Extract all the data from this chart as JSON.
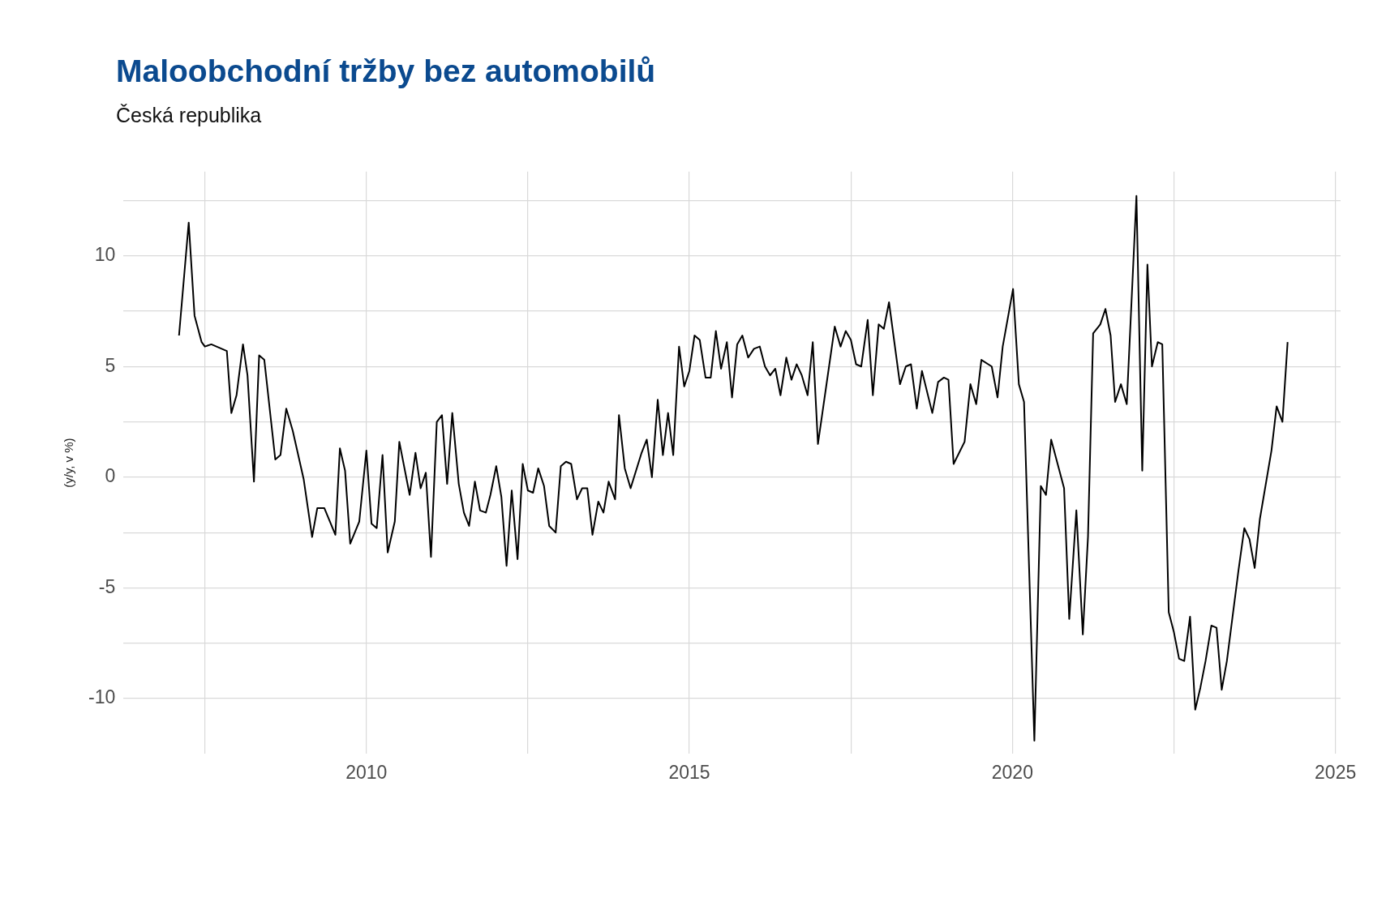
{
  "chart_data": {
    "type": "line",
    "title": "Maloobchodní tržby bez automobilů",
    "subtitle": "Česká republika",
    "ylabel": "(y/y, v %)",
    "x": [
      2007.1,
      2007.25,
      2007.34,
      2007.45,
      2007.5,
      2007.6,
      2007.84,
      2007.91,
      2007.99,
      2008.09,
      2008.16,
      2008.26,
      2008.34,
      2008.42,
      2008.59,
      2008.67,
      2008.76,
      2008.86,
      2009.03,
      2009.16,
      2009.24,
      2009.35,
      2009.52,
      2009.59,
      2009.67,
      2009.75,
      2009.89,
      2010.0,
      2010.08,
      2010.16,
      2010.25,
      2010.33,
      2010.44,
      2010.51,
      2010.67,
      2010.76,
      2010.84,
      2010.92,
      2011.0,
      2011.09,
      2011.17,
      2011.25,
      2011.33,
      2011.43,
      2011.51,
      2011.59,
      2011.68,
      2011.76,
      2011.85,
      2011.92,
      2012.01,
      2012.09,
      2012.17,
      2012.25,
      2012.34,
      2012.42,
      2012.5,
      2012.58,
      2012.66,
      2012.75,
      2012.83,
      2012.93,
      2013.01,
      2013.09,
      2013.17,
      2013.26,
      2013.34,
      2013.42,
      2013.5,
      2013.59,
      2013.67,
      2013.75,
      2013.85,
      2013.91,
      2014.0,
      2014.09,
      2014.26,
      2014.34,
      2014.42,
      2014.51,
      2014.59,
      2014.67,
      2014.75,
      2014.84,
      2014.92,
      2015.0,
      2015.08,
      2015.16,
      2015.25,
      2015.33,
      2015.41,
      2015.49,
      2015.58,
      2015.66,
      2015.74,
      2015.82,
      2015.91,
      2016.0,
      2016.09,
      2016.17,
      2016.25,
      2016.33,
      2016.41,
      2016.5,
      2016.58,
      2016.66,
      2016.74,
      2016.83,
      2016.91,
      2016.99,
      2017.25,
      2017.34,
      2017.42,
      2017.5,
      2017.58,
      2017.66,
      2017.76,
      2017.84,
      2017.93,
      2018.01,
      2018.09,
      2018.26,
      2018.35,
      2018.43,
      2018.52,
      2018.6,
      2018.76,
      2018.85,
      2018.94,
      2019.01,
      2019.09,
      2019.26,
      2019.35,
      2019.44,
      2019.52,
      2019.68,
      2019.77,
      2019.85,
      2020.01,
      2020.1,
      2020.18,
      2020.34,
      2020.44,
      2020.52,
      2020.6,
      2020.8,
      2020.88,
      2020.99,
      2021.09,
      2021.17,
      2021.25,
      2021.36,
      2021.44,
      2021.52,
      2021.59,
      2021.68,
      2021.77,
      2021.92,
      2022.01,
      2022.09,
      2022.16,
      2022.25,
      2022.32,
      2022.42,
      2022.5,
      2022.58,
      2022.66,
      2022.75,
      2022.83,
      2022.91,
      2022.99,
      2023.08,
      2023.16,
      2023.24,
      2023.32,
      2023.5,
      2023.59,
      2023.67,
      2023.75,
      2023.83,
      2024.01,
      2024.09,
      2024.18,
      2024.26
    ],
    "series": [
      {
        "color": "#000000",
        "values": [
          6.4,
          11.5,
          7.3,
          6.1,
          5.9,
          6.0,
          5.7,
          2.9,
          3.7,
          6.0,
          4.6,
          -0.2,
          5.5,
          5.3,
          0.8,
          1.0,
          3.1,
          2.1,
          -0.1,
          -2.7,
          -1.4,
          -1.4,
          -2.6,
          1.3,
          0.3,
          -3.0,
          -2.0,
          1.2,
          -2.1,
          -2.3,
          1.0,
          -3.4,
          -2.0,
          1.6,
          -0.8,
          1.1,
          -0.5,
          0.2,
          -3.6,
          2.5,
          2.8,
          -0.3,
          2.9,
          -0.3,
          -1.6,
          -2.2,
          -0.2,
          -1.5,
          -1.6,
          -0.8,
          0.5,
          -0.9,
          -4.0,
          -0.6,
          -3.7,
          0.6,
          -0.6,
          -0.7,
          0.4,
          -0.4,
          -2.2,
          -2.5,
          0.5,
          0.7,
          0.6,
          -1.0,
          -0.5,
          -0.5,
          -2.6,
          -1.1,
          -1.6,
          -0.2,
          -1.0,
          2.8,
          0.4,
          -0.5,
          1.1,
          1.7,
          0,
          3.5,
          1.0,
          2.9,
          1.0,
          5.9,
          4.1,
          4.8,
          6.4,
          6.2,
          4.5,
          4.5,
          6.6,
          4.9,
          6.1,
          3.6,
          6.0,
          6.4,
          5.4,
          5.8,
          5.9,
          5.0,
          4.6,
          4.9,
          3.7,
          5.4,
          4.4,
          5.1,
          4.6,
          3.7,
          6.1,
          1.5,
          6.8,
          5.9,
          6.6,
          6.2,
          5.1,
          5.0,
          7.1,
          3.7,
          6.9,
          6.7,
          7.9,
          4.2,
          5.0,
          5.1,
          3.1,
          4.8,
          2.9,
          4.3,
          4.5,
          4.4,
          0.6,
          1.6,
          4.2,
          3.3,
          5.3,
          5.0,
          3.6,
          5.9,
          8.5,
          4.2,
          3.4,
          -11.9,
          -0.4,
          -0.8,
          1.7,
          -0.5,
          -6.4,
          -1.5,
          -7.1,
          -2.7,
          6.5,
          6.9,
          7.6,
          6.4,
          3.4,
          4.2,
          3.3,
          12.7,
          0.3,
          9.6,
          5.0,
          6.1,
          6.0,
          -6.1,
          -7.0,
          -8.2,
          -8.3,
          -6.3,
          -10.5,
          -9.5,
          -8.3,
          -6.7,
          -6.8,
          -9.6,
          -8.3,
          -4.2,
          -2.3,
          -2.8,
          -4.1,
          -1.9,
          1.2,
          3.2,
          2.5,
          6.1
        ]
      }
    ],
    "xlim": [
      2006.24,
      2025.08
    ],
    "xticks": [
      {
        "value": 2007.5,
        "label": null
      },
      2010,
      {
        "value": 2012.5,
        "label": null
      },
      2015,
      {
        "value": 2017.5,
        "label": null
      },
      2020,
      {
        "value": 2022.5,
        "label": null
      },
      2025
    ],
    "ylim": [
      -12.5,
      13.8
    ],
    "yticks": [
      -10,
      {
        "value": -7.5,
        "label": null
      },
      -5,
      {
        "value": -2.5,
        "label": null
      },
      0,
      {
        "value": 2.5,
        "label": null
      },
      5,
      {
        "value": 7.5,
        "label": null
      },
      10,
      {
        "value": 12.5,
        "label": null
      }
    ],
    "grid": true,
    "marker": "none",
    "line_style": "solid"
  }
}
